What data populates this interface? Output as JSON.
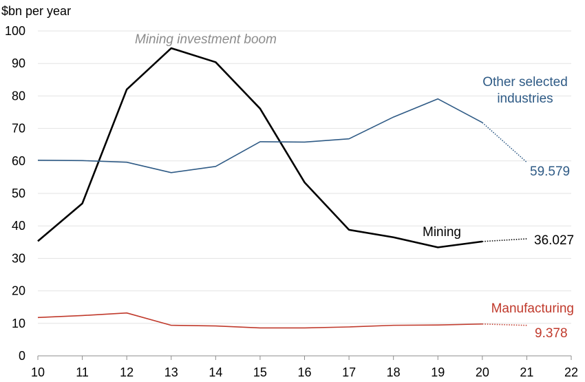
{
  "chart_data": {
    "type": "line",
    "ylabel": "$bn per year",
    "xlabel": "",
    "title": "",
    "xlim": [
      10,
      22
    ],
    "ylim": [
      0,
      100
    ],
    "x_ticks": [
      "10",
      "11",
      "12",
      "13",
      "14",
      "15",
      "16",
      "17",
      "18",
      "19",
      "20",
      "21",
      "22"
    ],
    "y_ticks": [
      "0",
      "10",
      "20",
      "30",
      "40",
      "50",
      "60",
      "70",
      "80",
      "90",
      "100"
    ],
    "grid": "horizontal",
    "annotations": {
      "boom": "Mining investment boom",
      "other_label_line1": "Other selected",
      "other_label_line2": "industries",
      "mining_label": "Mining",
      "manufacturing_label": "Manufacturing"
    },
    "series": [
      {
        "name": "Mining",
        "color": "#000000",
        "x": [
          10,
          11,
          12,
          13,
          14,
          15,
          16,
          17,
          18,
          19,
          20
        ],
        "values": [
          35.3,
          46.9,
          82.0,
          94.7,
          90.4,
          76.1,
          53.4,
          38.8,
          36.5,
          33.4,
          35.2
        ],
        "forecast": {
          "x": [
            20,
            21
          ],
          "values": [
            35.2,
            36.027
          ],
          "label": "36.027"
        }
      },
      {
        "name": "Other selected industries",
        "color": "#2e5a85",
        "x": [
          10,
          11,
          12,
          13,
          14,
          15,
          16,
          17,
          18,
          19,
          20
        ],
        "values": [
          60.2,
          60.1,
          59.6,
          56.4,
          58.3,
          65.9,
          65.8,
          66.8,
          73.5,
          79.1,
          71.8
        ],
        "forecast": {
          "x": [
            20,
            21
          ],
          "values": [
            71.8,
            59.579
          ],
          "label": "59.579"
        }
      },
      {
        "name": "Manufacturing",
        "color": "#c0392b",
        "x": [
          10,
          11,
          12,
          13,
          14,
          15,
          16,
          17,
          18,
          19,
          20
        ],
        "values": [
          11.8,
          12.4,
          13.2,
          9.4,
          9.2,
          8.6,
          8.6,
          8.9,
          9.4,
          9.5,
          9.8
        ],
        "forecast": {
          "x": [
            20,
            21
          ],
          "values": [
            9.8,
            9.378
          ],
          "label": "9.378"
        }
      }
    ]
  }
}
